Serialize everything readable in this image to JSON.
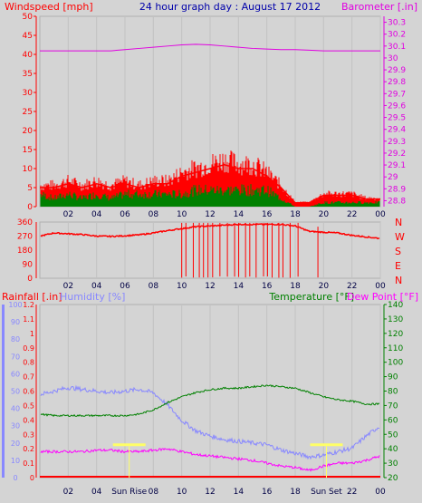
{
  "header": {
    "left": "Windspeed [mph]",
    "center": "24 hour graph day : August 17 2012",
    "right": "Barometer [.in]"
  },
  "colors": {
    "background": "#d4d4d4",
    "wind": "#ff0000",
    "gust": "#ff0000",
    "avg_wind": "#008000",
    "barometer": "#e000e0",
    "direction": "#ff0000",
    "humidity": "#8888ff",
    "temperature": "#008000",
    "dewpoint": "#ff00ff",
    "rain": "#ff0000",
    "sun_marker": "#ffff66",
    "title": "#0000aa"
  },
  "x_ticks": [
    "02",
    "04",
    "06",
    "08",
    "10",
    "12",
    "14",
    "16",
    "18",
    "20",
    "22",
    "00"
  ],
  "chart_data": [
    {
      "type": "line",
      "panel": "wind",
      "ylim": [
        0,
        50
      ],
      "y_ticks": [
        "50",
        "45",
        "40",
        "35",
        "30",
        "25",
        "20",
        "15",
        "10",
        "5",
        "0"
      ],
      "y2lim": [
        28.75,
        30.35
      ],
      "y2_ticks": [
        "30.3",
        "30.2",
        "30.1",
        "30",
        "29.9",
        "29.8",
        "29.7",
        "29.6",
        "29.5",
        "29.4",
        "29.3",
        "29.2",
        "29.1",
        "29",
        "28.9",
        "28.8"
      ],
      "x": [
        0,
        1,
        2,
        3,
        4,
        5,
        6,
        7,
        8,
        9,
        10,
        11,
        12,
        13,
        14,
        15,
        16,
        17,
        18,
        19,
        20,
        21,
        22,
        23,
        24
      ],
      "series": [
        {
          "values": [
            5,
            5,
            6,
            5,
            6,
            5,
            6,
            5,
            6,
            6,
            8,
            9,
            10,
            11,
            10,
            10,
            8,
            5,
            1,
            1,
            3,
            3,
            3,
            2,
            2
          ]
        },
        {
          "values": [
            3,
            2,
            3,
            2,
            3,
            2,
            3,
            3,
            3,
            3,
            3,
            4,
            4,
            4,
            4,
            4,
            4,
            2,
            0,
            0,
            1,
            1,
            1,
            1,
            1
          ]
        },
        {
          "axis": "right",
          "values": [
            30.06,
            30.06,
            30.06,
            30.06,
            30.06,
            30.06,
            30.07,
            30.08,
            30.09,
            30.1,
            30.11,
            30.115,
            30.11,
            30.1,
            30.09,
            30.08,
            30.075,
            30.07,
            30.07,
            30.065,
            30.06,
            30.06,
            30.06,
            30.06,
            30.06
          ]
        }
      ]
    },
    {
      "type": "line",
      "panel": "wind-direction",
      "ylim": [
        0,
        360
      ],
      "y_ticks": [
        "360",
        "270",
        "180",
        "90",
        "0"
      ],
      "y2_labels": [
        "N",
        "W",
        "S",
        "E",
        "N"
      ],
      "x": [
        0,
        1,
        2,
        3,
        4,
        5,
        6,
        7,
        8,
        9,
        10,
        11,
        12,
        13,
        14,
        15,
        16,
        17,
        18,
        19,
        20,
        21,
        22,
        23,
        24
      ],
      "series": [
        {
          "values": [
            270,
            290,
            285,
            280,
            270,
            268,
            272,
            278,
            290,
            305,
            318,
            330,
            335,
            340,
            345,
            345,
            345,
            345,
            335,
            300,
            295,
            290,
            275,
            265,
            255
          ]
        }
      ]
    },
    {
      "type": "line",
      "panel": "temp-humidity",
      "left_title_1": "Rainfall [.in]",
      "left_title_2": "Humidity [%]",
      "right_title_1": "Temperature [°F]",
      "right_title_2": "Dew Point [°F]",
      "rain_ticks": [
        "1.2",
        "1.1",
        "1",
        "0.9",
        "0.8",
        "0.7",
        "0.6",
        "0.5",
        "0.4",
        "0.3",
        "0.2",
        "0.1",
        "0"
      ],
      "humidity_ticks": [
        "100",
        "90",
        "80",
        "70",
        "60",
        "50",
        "40",
        "30",
        "20",
        "10",
        "0"
      ],
      "temp_ticks": [
        "140",
        "130",
        "120",
        "110",
        "100",
        "90",
        "80",
        "70",
        "60",
        "50",
        "40",
        "30",
        "20"
      ],
      "ylim_temp": [
        20,
        140
      ],
      "ylim_humidity": [
        0,
        100
      ],
      "sun_labels": [
        {
          "x": 6.3,
          "text": "Sun Rise"
        },
        {
          "x": 20.2,
          "text": "Sun Set"
        }
      ],
      "x": [
        0,
        1,
        2,
        3,
        4,
        5,
        6,
        7,
        8,
        9,
        10,
        11,
        12,
        13,
        14,
        15,
        16,
        17,
        18,
        19,
        20,
        21,
        22,
        23,
        24
      ],
      "series": [
        {
          "axis": "humidity",
          "values": [
            48,
            50,
            52,
            51,
            50,
            49,
            50,
            51,
            49,
            42,
            33,
            27,
            24,
            22,
            21,
            20,
            19,
            16,
            14,
            12,
            13,
            15,
            17,
            24,
            30
          ]
        },
        {
          "axis": "temp",
          "values": [
            64,
            63,
            63,
            63,
            63,
            63,
            63,
            64,
            67,
            72,
            76,
            79,
            81,
            82,
            82,
            83,
            84,
            83,
            82,
            79,
            76,
            74,
            73,
            71,
            71
          ]
        },
        {
          "axis": "temp",
          "values": [
            38,
            38,
            38,
            38,
            39,
            39,
            38,
            38,
            39,
            40,
            38,
            36,
            35,
            34,
            33,
            32,
            30,
            28,
            27,
            25,
            28,
            30,
            30,
            32,
            35
          ]
        },
        {
          "axis": "rain",
          "values": [
            0,
            0,
            0,
            0,
            0,
            0,
            0,
            0,
            0,
            0,
            0,
            0,
            0,
            0,
            0,
            0,
            0,
            0,
            0,
            0,
            0,
            0,
            0,
            0,
            0
          ]
        }
      ]
    }
  ]
}
